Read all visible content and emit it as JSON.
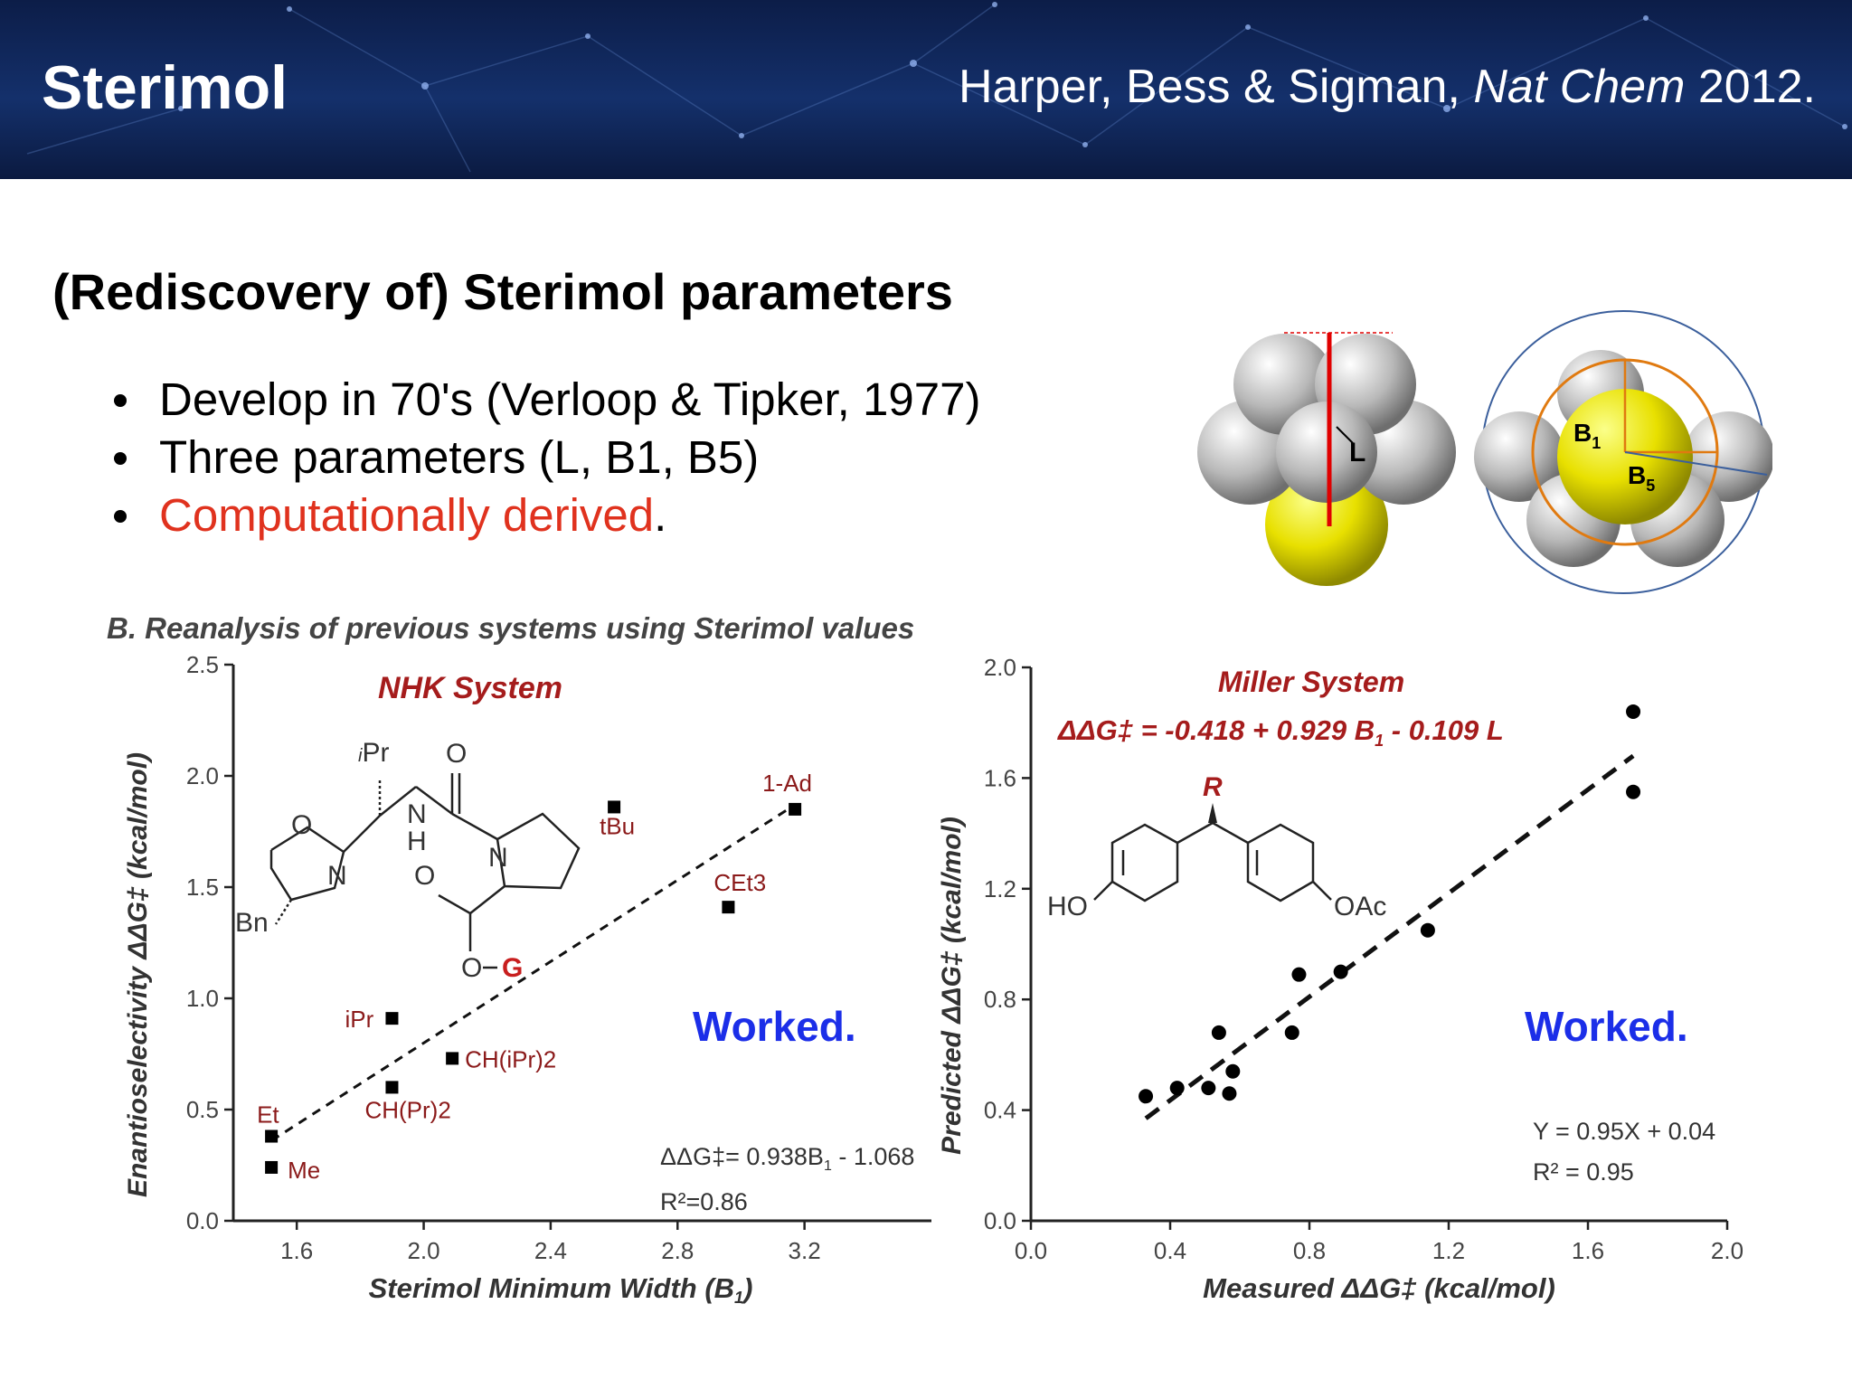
{
  "header": {
    "title": "Sterimol",
    "citation_authors": "Harper, Bess & Sigman, ",
    "citation_journal": "Nat Chem",
    "citation_year": " 2012."
  },
  "main_heading": "(Rediscovery of) Sterimol parameters",
  "bullets": [
    {
      "text": "Develop in 70's (Verloop & Tipker, 1977)"
    },
    {
      "text": "Three parameters (L, B1, B5)"
    },
    {
      "text_red": "Computationally derived",
      "text_tail": "."
    }
  ],
  "molecule_labels": {
    "L": "L",
    "B1": "B",
    "B1_sub": "1",
    "B5": "B",
    "B5_sub": "5"
  },
  "panel_caption": "B. Reanalysis of previous systems using Sterimol values",
  "worked_left": "Worked.",
  "worked_right": "Worked.",
  "colors": {
    "accent_red": "#e0321e",
    "worked_blue": "#1b2ee8",
    "label_darkred": "#8b1a1a",
    "molecule_yellow": "#e8e000"
  },
  "structure_labels_left": {
    "ipr": "Pr",
    "ipr_prefix": "i",
    "o_top": "O",
    "o_ring": "O",
    "n_ring": "N",
    "n_amide": "N",
    "h_amide": "H",
    "n_pro": "N",
    "o_carb": "O",
    "o_g": "O",
    "g": "G",
    "bn": "Bn"
  },
  "structure_labels_right": {
    "r": "R",
    "ho": "HO",
    "oac": "OAc"
  },
  "chart_data": [
    {
      "type": "scatter",
      "title": "NHK System",
      "xlabel": "Sterimol Minimum Width (B",
      "xlabel_sub": "1",
      "xlabel_tail": ")",
      "ylabel": "Enantioselectivity ΔΔG‡ (kcal/mol)",
      "xlim": [
        1.4,
        3.6
      ],
      "ylim": [
        0,
        2.5
      ],
      "xticks": [
        "1.6",
        "2.0",
        "2.4",
        "2.8",
        "3.2"
      ],
      "xtick_values": [
        1.6,
        2.0,
        2.4,
        2.8,
        3.2
      ],
      "yticks": [
        "0.0",
        "0.5",
        "1.0",
        "1.5",
        "2.0",
        "2.5"
      ],
      "ytick_values": [
        0,
        0.5,
        1.0,
        1.5,
        2.0,
        2.5
      ],
      "points": [
        {
          "label": "Me",
          "x": 1.52,
          "y": 0.24
        },
        {
          "label": "Et",
          "x": 1.52,
          "y": 0.38
        },
        {
          "label": "iPr",
          "x": 1.9,
          "y": 0.91
        },
        {
          "label": "CH(Pr)2",
          "x": 1.9,
          "y": 0.6
        },
        {
          "label": "CH(iPr)2",
          "x": 2.09,
          "y": 0.73
        },
        {
          "label": "tBu",
          "x": 2.6,
          "y": 1.86
        },
        {
          "label": "CEt3",
          "x": 2.96,
          "y": 1.41
        },
        {
          "label": "1-Ad",
          "x": 3.17,
          "y": 1.85
        }
      ],
      "fit": {
        "x0": 1.52,
        "y0": 0.36,
        "x1": 3.17,
        "y1": 1.87
      },
      "equation": "ΔΔG‡= 0.938B",
      "equation_sub": "1",
      "equation_tail": " - 1.068",
      "r2": "R²=0.86"
    },
    {
      "type": "scatter",
      "title": "Miller System",
      "equation_header": "ΔΔG‡ = -0.418 + 0.929 B",
      "equation_header_sub": "1",
      "equation_header_tail": " - 0.109 L",
      "xlabel": "Measured ΔΔG‡ (kcal/mol)",
      "ylabel": "Predicted ΔΔG‡ (kcal/mol)",
      "xlim": [
        0,
        2.0
      ],
      "ylim": [
        0,
        2.0
      ],
      "xticks": [
        "0.0",
        "0.4",
        "0.8",
        "1.2",
        "1.6",
        "2.0"
      ],
      "xtick_values": [
        0,
        0.4,
        0.8,
        1.2,
        1.6,
        2.0
      ],
      "yticks": [
        "0.0",
        "0.4",
        "0.8",
        "1.2",
        "1.6",
        "2.0"
      ],
      "ytick_values": [
        0,
        0.4,
        0.8,
        1.2,
        1.6,
        2.0
      ],
      "points": [
        {
          "x": 0.33,
          "y": 0.45
        },
        {
          "x": 0.42,
          "y": 0.48
        },
        {
          "x": 0.51,
          "y": 0.48
        },
        {
          "x": 0.54,
          "y": 0.68
        },
        {
          "x": 0.57,
          "y": 0.46
        },
        {
          "x": 0.58,
          "y": 0.54
        },
        {
          "x": 0.75,
          "y": 0.68
        },
        {
          "x": 0.77,
          "y": 0.89
        },
        {
          "x": 0.89,
          "y": 0.9
        },
        {
          "x": 1.14,
          "y": 1.05
        },
        {
          "x": 1.73,
          "y": 1.55
        },
        {
          "x": 1.73,
          "y": 1.84
        }
      ],
      "fit": {
        "x0": 0.33,
        "y0": 0.37,
        "x1": 1.73,
        "y1": 1.68
      },
      "equation": "Y = 0.95X + 0.04",
      "r2": "R² = 0.95"
    }
  ]
}
